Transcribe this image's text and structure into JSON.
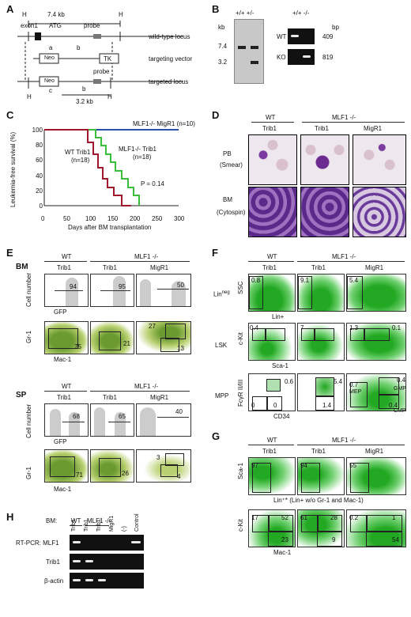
{
  "panels": {
    "A": "A",
    "B": "B",
    "C": "C",
    "D": "D",
    "E": "E",
    "F": "F",
    "G": "G",
    "H": "H"
  },
  "A": {
    "kb": "7.4 kb",
    "H": "H",
    "exon1": "exon1",
    "atg": "ATG",
    "probe": "probe",
    "wt_locus": "wild-type locus",
    "tv": "targeting vector",
    "tl": "targeted locus",
    "neo": "Neo",
    "tk": "TK",
    "a": "a",
    "b": "b",
    "c": "c",
    "kb32": "3.2 kb"
  },
  "B": {
    "geno1": "+/+ +/-",
    "kb": "kb",
    "kb74": "7.4",
    "kb32": "3.2",
    "geno2": "+/+ -/-",
    "bp": "bp",
    "wt": "WT",
    "ko": "KO",
    "bp409": "409",
    "bp819": "819"
  },
  "C": {
    "ylabel": "Leukemia-free survival (%)",
    "xlabel": "Days after BM transplantation",
    "migr1": "MLF1-/- MigR1 (n=10)",
    "wt1": "WT Trib1",
    "wt2": "(n=18)",
    "ko1": "MLF1-/- Trib1",
    "ko2": "(n=18)",
    "p": "P = 0.14",
    "yticks": [
      "100",
      "80",
      "60",
      "40",
      "20",
      "0"
    ],
    "xticks": [
      "0",
      "50",
      "100",
      "150",
      "200",
      "250",
      "300"
    ]
  },
  "D": {
    "wt": "WT",
    "mlf": "MLF1 -/-",
    "trib1": "Trib1",
    "trib1b": "Trib1",
    "migr1": "MigR1",
    "pb": "PB",
    "smear": "(Smear)",
    "bm": "BM",
    "cyto": "(Cytospin)"
  },
  "E": {
    "bm": "BM",
    "sp": "SP",
    "wt": "WT",
    "mlf": "MLF1 -/-",
    "trib1": "Trib1",
    "trib1b": "Trib1",
    "migr1": "MigR1",
    "cellnum": "Cell number",
    "gfp": "GFP",
    "gr1": "Gr-1",
    "mac1": "Mac-1",
    "bm_gfp": [
      "94",
      "95",
      "50"
    ],
    "bm_gr": [
      "75",
      "21",
      "27",
      "13"
    ],
    "sp_wt": "WT",
    "sp_mlf": "MLF1 -/-",
    "sp_trib1": "Trib1",
    "sp_trib1b": "Trib1",
    "sp_migr1": "MigR1",
    "sp_cellnum": "Cell number",
    "sp_gfp": "GFP",
    "sp_gr1": "Gr-1",
    "sp_mac1": "Mac-1",
    "sp_gfpv": [
      "68",
      "65",
      "40"
    ],
    "sp_grv": [
      "71",
      "26",
      "3",
      "4"
    ]
  },
  "F": {
    "wt": "WT",
    "mlf": "MLF1 -/-",
    "trib1": "Trib1",
    "trib1b": "Trib1",
    "migr1": "MigR1",
    "linneg": "Lin",
    "neg": "neg",
    "ssc": "SSC",
    "linp": "Lin+",
    "lsk": "LSK",
    "ckit": "c-Kit",
    "sca1": "Sca-1",
    "mpp": "MPP",
    "fcr": "FcγR II/III",
    "cd34": "CD34",
    "lin": [
      "0.8",
      "9.1",
      "5.4"
    ],
    "lskv": [
      "0.4",
      "7",
      "1.3",
      "0.1"
    ],
    "mppv": [
      "0.6",
      "0",
      "0",
      "5.4",
      "1.4",
      "0.7",
      "0.4",
      "0.4"
    ],
    "mep": "MEP",
    "gmp": "GMP",
    "cmp": "CMP"
  },
  "G": {
    "wt": "WT",
    "mlf": "MLF1 -/-",
    "trib1": "Trib1",
    "trib1b": "Trib1",
    "migr1": "MigR1",
    "sca1": "Sca-1",
    "lin": "Lin⁺* (Lin+ w/o Gr-1 and Mac-1)",
    "ckit": "c-Kit",
    "mac1": "Mac-1",
    "top": [
      "97",
      "94",
      "55"
    ],
    "bot": [
      "17",
      "52",
      "23",
      "61",
      "28",
      "9",
      "0.2",
      "1",
      "54"
    ]
  },
  "H": {
    "bm": "BM:",
    "wt": "WT",
    "mlf": "MLF1 -/-",
    "lanes": [
      "Trib1",
      "Trib1",
      "Trib1",
      "MigR1",
      "(-)",
      "Control"
    ],
    "rt": "RT-PCR: MLF1",
    "trib": "Trib1",
    "actin": "β-actin"
  },
  "colors": {
    "green": "#3bbf3b",
    "red": "#a0162c",
    "blue": "#2a4fa8",
    "stain": "#5a2a8a"
  }
}
